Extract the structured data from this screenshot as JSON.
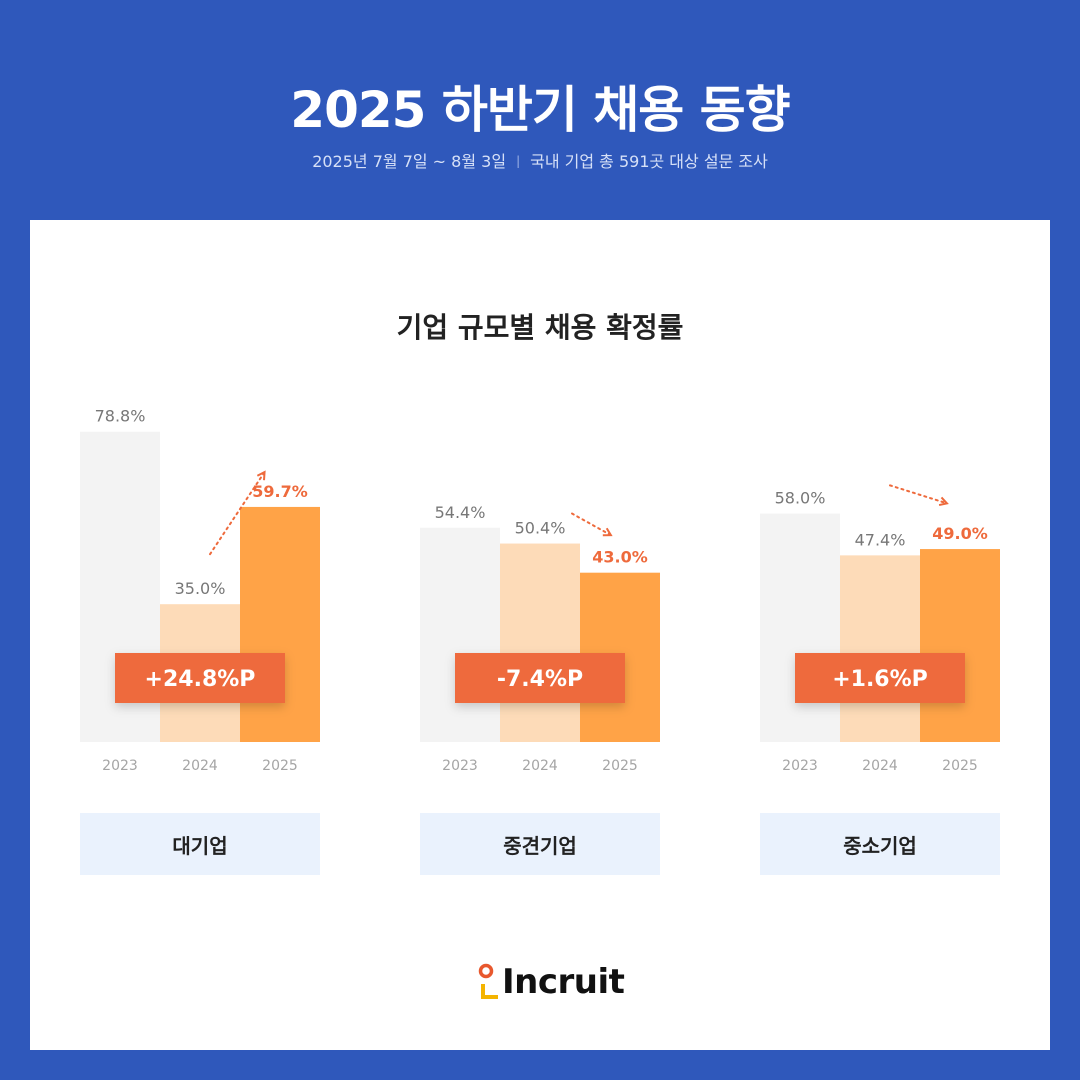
{
  "header": {
    "title": "2025 하반기 채용 동향",
    "period": "2025년 7월 7일 ~ 8월 3일",
    "separator": "|",
    "survey": "국내 기업 총 591곳 대상 설문 조사"
  },
  "chart_data": {
    "type": "bar",
    "title": "기업 규모별 채용 확정률",
    "x": [
      "2023",
      "2024",
      "2025"
    ],
    "unit": "%",
    "groups": [
      {
        "name": "대기업",
        "values": [
          78.8,
          35.0,
          59.7
        ],
        "labels": [
          "78.8%",
          "35.0%",
          "59.7%"
        ],
        "change": "+24.8%P",
        "trend": "up"
      },
      {
        "name": "중견기업",
        "values": [
          54.4,
          50.4,
          43.0
        ],
        "labels": [
          "54.4%",
          "50.4%",
          "43.0%"
        ],
        "change": "-7.4%P",
        "trend": "down"
      },
      {
        "name": "중소기업",
        "values": [
          58.0,
          47.4,
          49.0
        ],
        "labels": [
          "58.0%",
          "47.4%",
          "49.0%"
        ],
        "change": "+1.6%P",
        "trend": "up"
      }
    ],
    "colors": [
      "#f3f3f3",
      "#fddbb8",
      "#ffa347"
    ],
    "highlight_color": "#ee6a3c",
    "ylim": [
      0,
      80
    ],
    "grid": false,
    "legend": "none"
  },
  "footer": {
    "brand": "Incruit",
    "brand_colors": {
      "dot": "#e8582e",
      "bracket": "#f4b400"
    }
  }
}
